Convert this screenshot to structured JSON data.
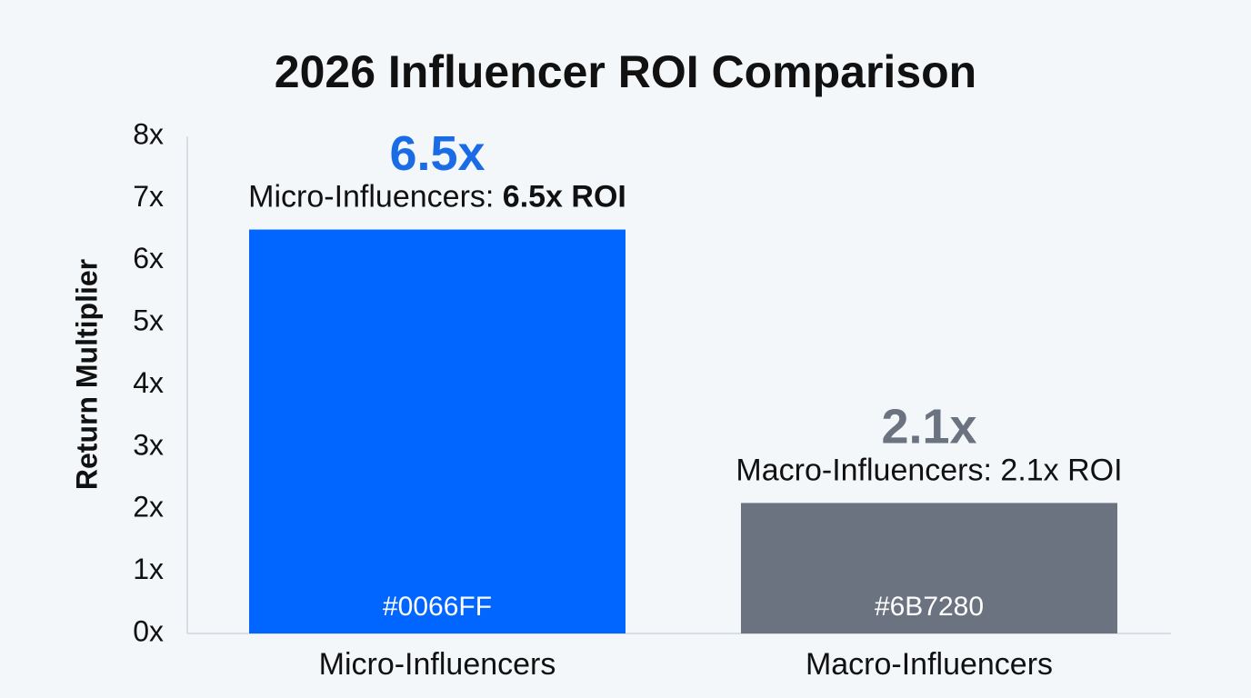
{
  "chart_data": {
    "type": "bar",
    "title": "2026 Influencer ROI Comparison",
    "xlabel": "",
    "ylabel": "Return Multiplier",
    "ylim": [
      0,
      8
    ],
    "yticks": [
      "0x",
      "1x",
      "2x",
      "3x",
      "4x",
      "5x",
      "6x",
      "7x",
      "8x"
    ],
    "grid": false,
    "categories": [
      "Micro-Influencers",
      "Macro-Influencers"
    ],
    "values": [
      6.5,
      2.1
    ],
    "value_labels": [
      "6.5x",
      "2.1x"
    ],
    "annotations": [
      {
        "prefix": "Micro-Influencers: ",
        "emphasis": "6.5x ROI",
        "emphasis_bold": true
      },
      {
        "prefix": "Macro-Influencers: ",
        "emphasis": "2.1x ROI",
        "emphasis_bold": false
      }
    ],
    "bar_labels": [
      "#0066FF",
      "#6B7280"
    ],
    "colors": [
      "#0066FF",
      "#6B7280"
    ],
    "value_label_colors": [
      "#1a6ce6",
      "#6b7280"
    ]
  }
}
